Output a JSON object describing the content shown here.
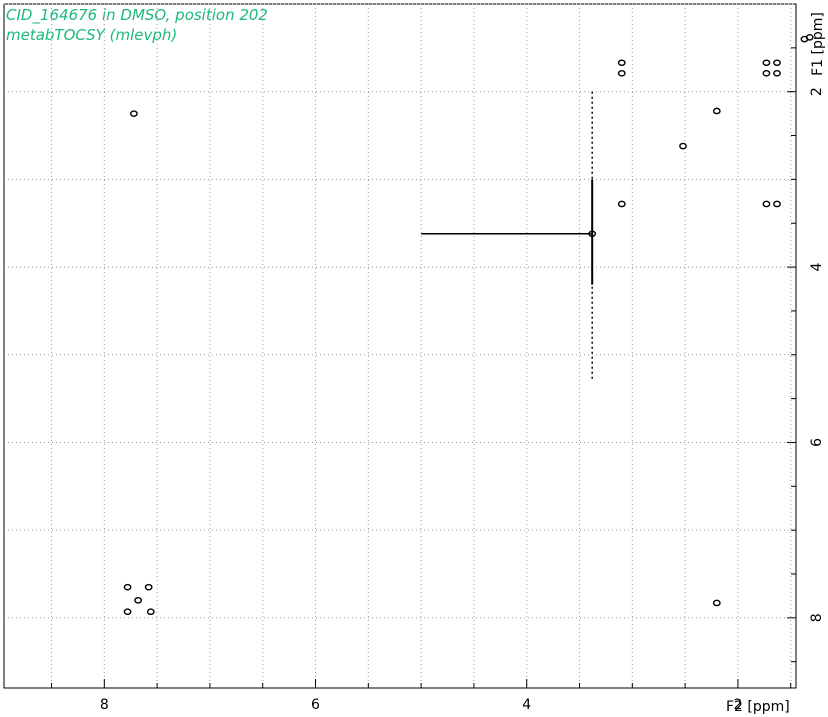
{
  "chart_data": {
    "type": "scatter",
    "title": "CID_164676 in DMSO, position 202",
    "subtitle": "metabTOCSY (mlevph)",
    "xlabel": "F2 [ppm]",
    "ylabel": "F1 [ppm]",
    "xlim": [
      8.95,
      1.45
    ],
    "ylim": [
      1.0,
      8.8
    ],
    "x_ticks": [
      8,
      6,
      4,
      2
    ],
    "y_ticks": [
      2,
      4,
      6,
      8
    ],
    "grid": true,
    "peaks": [
      {
        "x": 1.37,
        "y": 1.4
      },
      {
        "x": 1.32,
        "y": 1.38
      },
      {
        "x": 1.73,
        "y": 1.67
      },
      {
        "x": 1.63,
        "y": 1.67
      },
      {
        "x": 1.73,
        "y": 1.79
      },
      {
        "x": 1.63,
        "y": 1.79
      },
      {
        "x": 3.1,
        "y": 1.67
      },
      {
        "x": 3.1,
        "y": 1.79
      },
      {
        "x": 2.2,
        "y": 2.22
      },
      {
        "x": 2.52,
        "y": 2.62
      },
      {
        "x": 7.72,
        "y": 2.25
      },
      {
        "x": 3.1,
        "y": 3.28
      },
      {
        "x": 1.73,
        "y": 3.28
      },
      {
        "x": 1.63,
        "y": 3.28
      },
      {
        "x": 3.38,
        "y": 3.62
      },
      {
        "x": 7.78,
        "y": 7.65
      },
      {
        "x": 7.58,
        "y": 7.65
      },
      {
        "x": 7.68,
        "y": 7.8
      },
      {
        "x": 7.78,
        "y": 7.93
      },
      {
        "x": 7.56,
        "y": 7.93
      },
      {
        "x": 2.2,
        "y": 7.83
      }
    ]
  }
}
